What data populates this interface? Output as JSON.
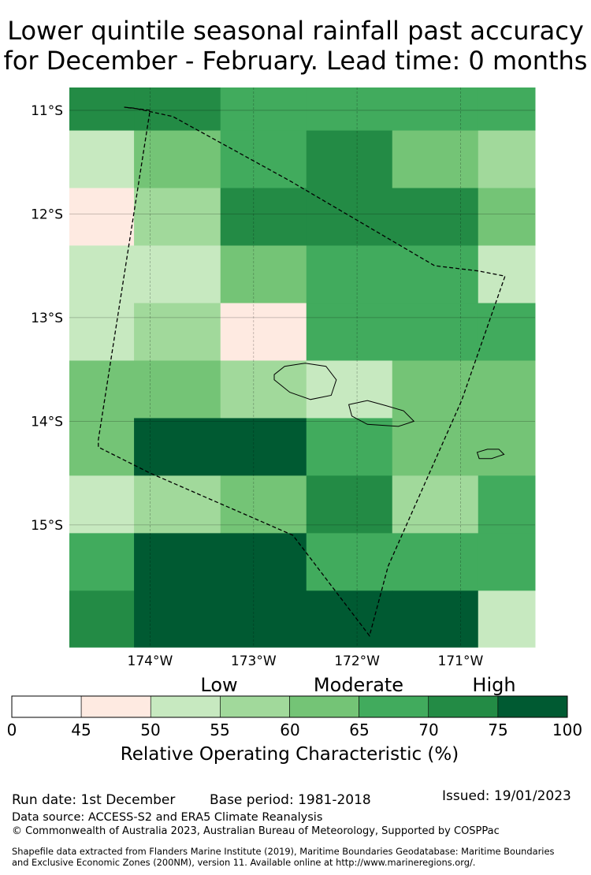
{
  "title": {
    "line1": "Lower quintile seasonal rainfall past accuracy",
    "line2": "for December - February. Lead time: 0 months"
  },
  "map": {
    "lat_labels": [
      "11°S",
      "12°S",
      "13°S",
      "14°S",
      "15°S"
    ],
    "lon_labels": [
      "174°W",
      "173°W",
      "172°W",
      "171°W"
    ],
    "lon_range": [
      -174.78,
      -170.28
    ],
    "lat_range": [
      -16.18,
      -10.78
    ],
    "grid_lons": [
      -174.78,
      -174.155,
      -173.32,
      -172.49,
      -171.66,
      -170.83,
      -170.28
    ],
    "grid_lats": [
      -10.78,
      -11.195,
      -11.75,
      -12.305,
      -12.86,
      -13.415,
      -13.97,
      -14.525,
      -15.08,
      -15.635,
      -16.18
    ],
    "roc_grid": [
      [
        73,
        73,
        68,
        68,
        68,
        68
      ],
      [
        53,
        63,
        68,
        73,
        63,
        58
      ],
      [
        48,
        58,
        73,
        73,
        73,
        63
      ],
      [
        53,
        53,
        63,
        68,
        68,
        53
      ],
      [
        53,
        58,
        48,
        68,
        68,
        68
      ],
      [
        63,
        63,
        58,
        53,
        63,
        63
      ],
      [
        63,
        80,
        80,
        68,
        63,
        63
      ],
      [
        53,
        58,
        63,
        73,
        58,
        68
      ],
      [
        68,
        80,
        80,
        68,
        68,
        68
      ],
      [
        73,
        80,
        80,
        80,
        80,
        53
      ]
    ],
    "eez_boundary": [
      [
        -174.25,
        -10.97
      ],
      [
        -174.15,
        -10.98
      ],
      [
        -173.78,
        -11.06
      ],
      [
        -172.65,
        -11.68
      ],
      [
        -171.25,
        -12.5
      ],
      [
        -170.83,
        -12.55
      ],
      [
        -170.57,
        -12.6
      ],
      [
        -170.99,
        -13.8
      ],
      [
        -171.7,
        -15.4
      ],
      [
        -171.88,
        -16.07
      ],
      [
        -172.62,
        -15.1
      ],
      [
        -174.0,
        -14.5
      ],
      [
        -174.5,
        -14.25
      ],
      [
        -174.5,
        -14.18
      ],
      [
        -174.0,
        -11.0
      ]
    ],
    "islands": [
      [
        [
          -172.8,
          -13.55
        ],
        [
          -172.7,
          -13.47
        ],
        [
          -172.5,
          -13.44
        ],
        [
          -172.3,
          -13.47
        ],
        [
          -172.2,
          -13.6
        ],
        [
          -172.25,
          -13.75
        ],
        [
          -172.45,
          -13.79
        ],
        [
          -172.65,
          -13.72
        ],
        [
          -172.8,
          -13.6
        ]
      ],
      [
        [
          -172.08,
          -13.84
        ],
        [
          -171.9,
          -13.8
        ],
        [
          -171.72,
          -13.85
        ],
        [
          -171.55,
          -13.9
        ],
        [
          -171.45,
          -14.0
        ],
        [
          -171.6,
          -14.05
        ],
        [
          -171.9,
          -14.03
        ],
        [
          -172.05,
          -13.95
        ]
      ],
      [
        [
          -170.84,
          -14.3
        ],
        [
          -170.74,
          -14.27
        ],
        [
          -170.63,
          -14.27
        ],
        [
          -170.58,
          -14.32
        ],
        [
          -170.7,
          -14.36
        ],
        [
          -170.82,
          -14.36
        ]
      ]
    ]
  },
  "legend": {
    "categories": [
      "Low",
      "Moderate",
      "High"
    ],
    "ticks": [
      "0",
      "45",
      "50",
      "55",
      "60",
      "65",
      "70",
      "75",
      "100"
    ],
    "tick_values": [
      0,
      45,
      50,
      55,
      60,
      65,
      70,
      75,
      100
    ],
    "colors": [
      "#ffffff",
      "#feeae1",
      "#c7e9c0",
      "#a1d99b",
      "#74c476",
      "#41ab5d",
      "#238b45",
      "#005a32"
    ],
    "title": "Relative Operating Characteristic (%)"
  },
  "footer": {
    "run_date": "Run date: 1st December",
    "base_period": "Base period: 1981-2018",
    "issued": "Issued: 19/01/2023",
    "data_source": "Data source: ACCESS-S2 and ERA5 Climate Reanalysis",
    "copyright": "© Commonwealth of Australia 2023, Australian Bureau of Meteorology, Supported by COSPPac",
    "shapefile_line1": "Shapefile data extracted from Flanders Marine Institute (2019), Maritime Boundaries Geodatabase: Maritime Boundaries",
    "shapefile_line2": "and Exclusive Economic Zones (200NM), version 11. Available online at http://www.marineregions.org/."
  }
}
